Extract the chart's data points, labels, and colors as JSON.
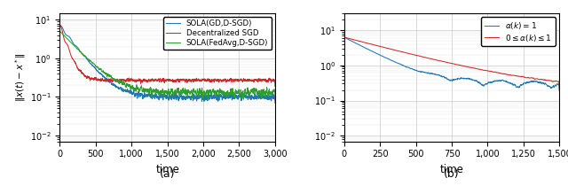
{
  "fig_width": 6.4,
  "fig_height": 2.1,
  "dpi": 100,
  "subplot_a": {
    "xlim": [
      0,
      3000
    ],
    "xlabel": "time",
    "ylabel": "$\\|x(t) - x^*\\|$",
    "caption": "(a)",
    "xticks": [
      0,
      500,
      1000,
      1500,
      2000,
      2500,
      3000
    ],
    "yticks_major": [
      0.01,
      0.1,
      1.0,
      10.0
    ],
    "ylim": [
      0.007,
      15
    ],
    "legend": [
      {
        "label": "SOLA(GD,D-SGD)",
        "color": "#1f77b4"
      },
      {
        "label": "Decentralized SGD",
        "color": "#d62728"
      },
      {
        "label": "SOLA(FedAvg,D-SGD)",
        "color": "#2ca02c"
      }
    ]
  },
  "subplot_b": {
    "xlim": [
      0,
      1500
    ],
    "xlabel": "time",
    "caption": "(b)",
    "xticks": [
      0,
      250,
      500,
      750,
      1000,
      1250,
      1500
    ],
    "yticks_major": [
      0.01,
      0.1,
      1.0,
      10.0
    ],
    "ylim": [
      0.007,
      30
    ],
    "legend": [
      {
        "label": "$\\alpha(k) = 1$",
        "color": "#1f77b4"
      },
      {
        "label": "$0 \\leq \\alpha(k) \\leq 1$",
        "color": "#d62728"
      }
    ]
  },
  "seed": 7
}
